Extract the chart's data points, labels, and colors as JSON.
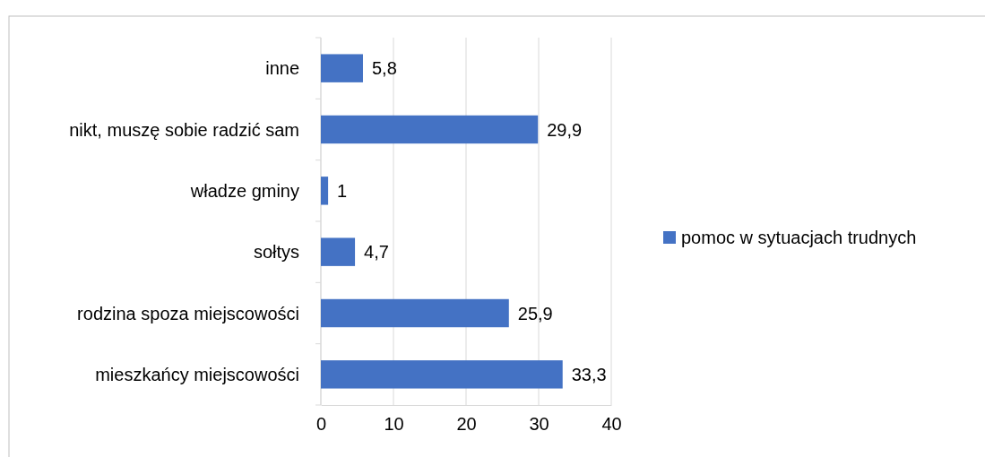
{
  "chart_data": {
    "type": "bar",
    "orientation": "horizontal",
    "categories": [
      "inne",
      "nikt, muszę sobie radzić sam",
      "władze gminy",
      "sołtys",
      "rodzina spoza miejscowości",
      "mieszkańcy miejscowości"
    ],
    "series": [
      {
        "name": "pomoc w sytuacjach trudnych",
        "color": "#4472c4",
        "values": [
          5.8,
          29.9,
          1,
          4.7,
          25.9,
          33.3
        ],
        "value_labels": [
          "5,8",
          "29,9",
          "1",
          "4,7",
          "25,9",
          "33,3"
        ]
      }
    ],
    "xlim": [
      0,
      40
    ],
    "xticks": [
      0,
      10,
      20,
      30,
      40
    ],
    "grid": "x",
    "legend": "right"
  }
}
